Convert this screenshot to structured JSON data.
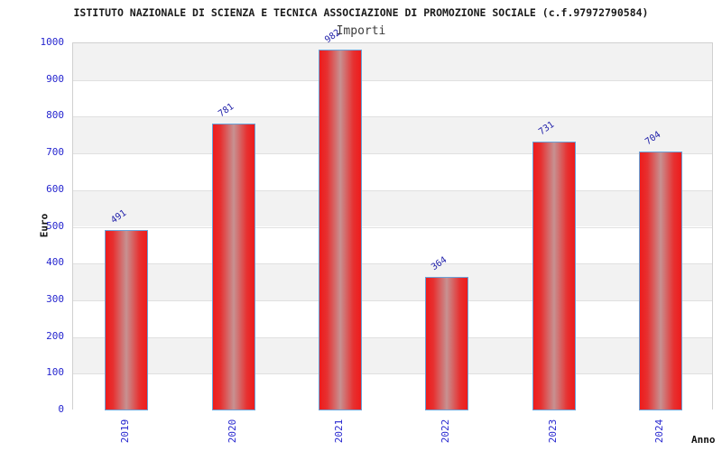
{
  "chart_data": {
    "type": "bar",
    "title": "ISTITUTO NAZIONALE DI SCIENZA E TECNICA ASSOCIAZIONE DI PROMOZIONE SOCIALE (c.f.97972790584)",
    "subtitle": "Importi",
    "xlabel": "Anno",
    "ylabel": "Euro",
    "categories": [
      "2019",
      "2020",
      "2021",
      "2022",
      "2023",
      "2024"
    ],
    "values": [
      491,
      781,
      982,
      364,
      731,
      704
    ],
    "ylim": [
      0,
      1000
    ],
    "ytick_step": 100,
    "grid": "horizontal-bands-alternating",
    "legend_position": "none",
    "colors": {
      "bar_fill_edge": "#ee1b1b",
      "bar_fill_center": "#c79191",
      "bar_border": "#69a2d8",
      "tick_label": "#2626cf",
      "value_label": "#2222aa",
      "band_gray": "#f2f2f2",
      "band_white": "#ffffff",
      "gridline": "#e0e0e0",
      "plot_border": "#d0d0d0",
      "title_color": "#1a1a1a",
      "subtitle_color": "#3c3c3c",
      "axis_title_color": "#111111"
    }
  }
}
